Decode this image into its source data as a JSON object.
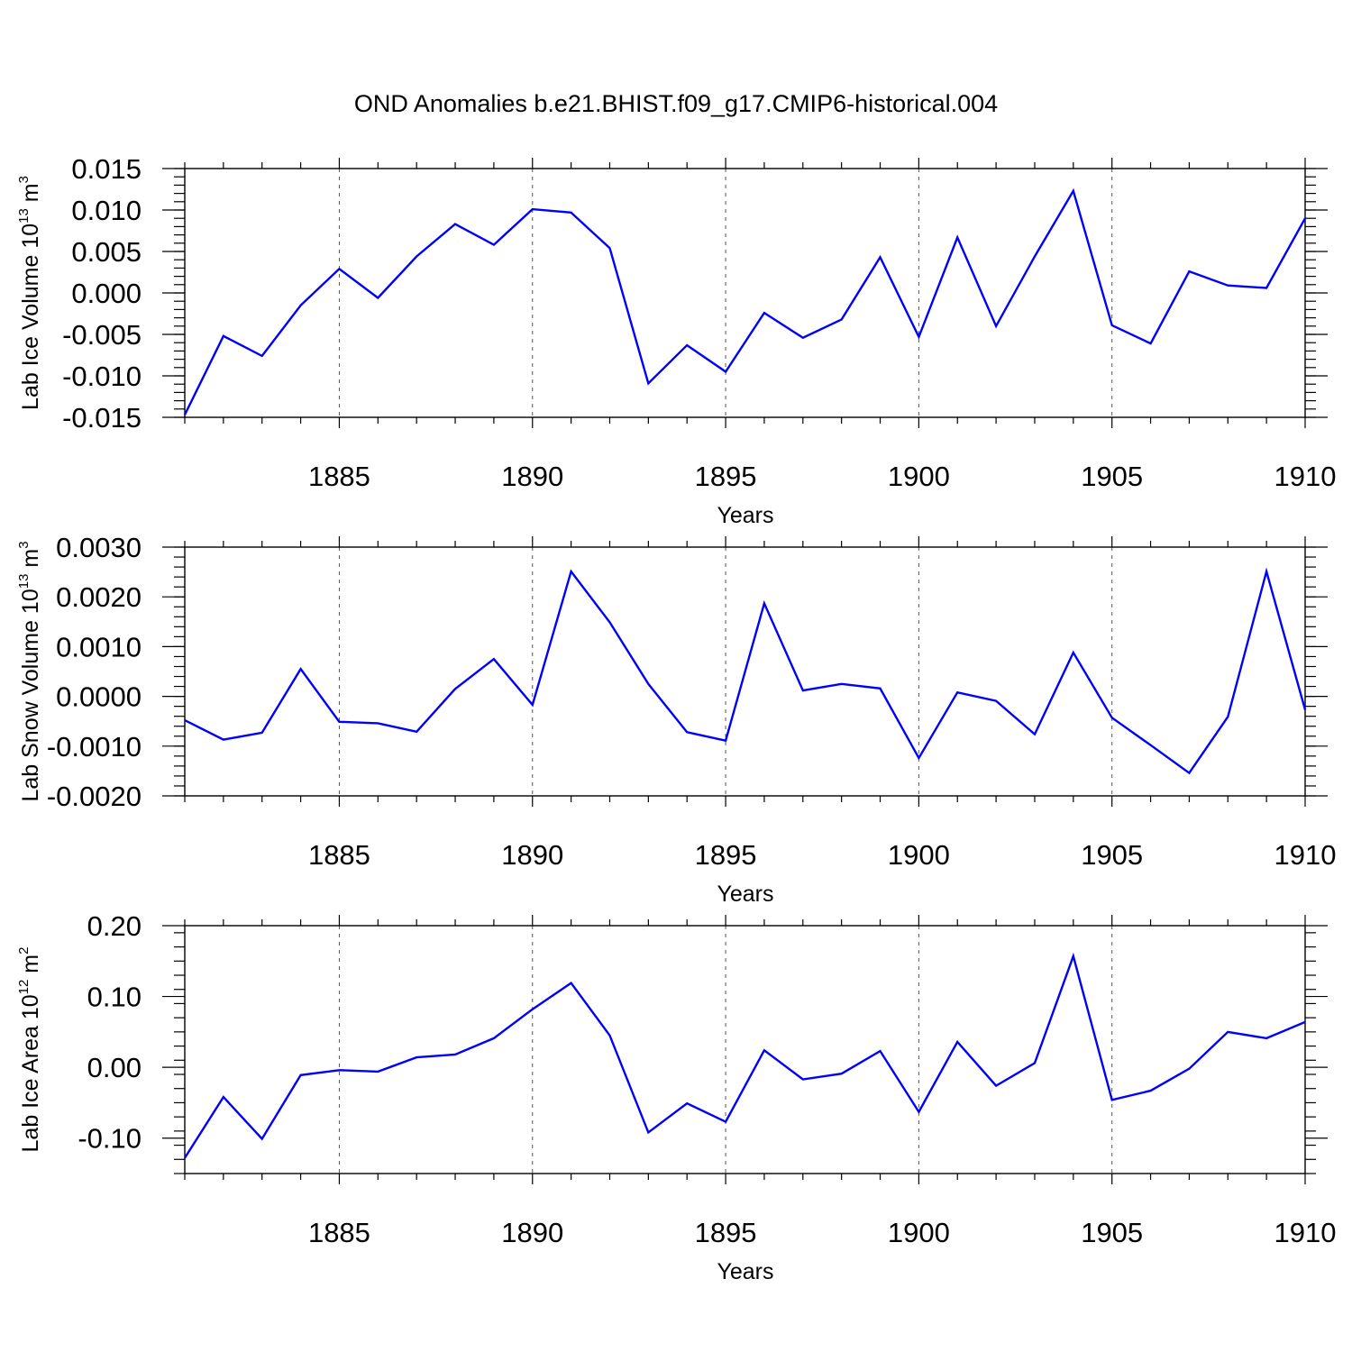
{
  "figure": {
    "title": "OND Anomalies b.e21.BHIST.f09_g17.CMIP6-historical.004"
  },
  "colors": {
    "series": "#0000ff",
    "axis": "#000000",
    "grid": "#555555"
  },
  "chart_data": [
    {
      "type": "line",
      "xlabel": "Years",
      "ylabel_text": "Lab Ice Volume 10",
      "ylabel_exponent": "13",
      "ylabel_unit": "m",
      "ylabel_unit_exponent": "3",
      "xlim": [
        1881,
        1910
      ],
      "ylim": [
        -0.015,
        0.015
      ],
      "xticks": [
        1885,
        1890,
        1895,
        1900,
        1905,
        1910
      ],
      "xtick_labels": [
        "1885",
        "1890",
        "1895",
        "1900",
        "1905",
        "1910"
      ],
      "yticks": [
        -0.015,
        -0.01,
        -0.005,
        0.0,
        0.005,
        0.01,
        0.015
      ],
      "ytick_labels": [
        "-0.015",
        "-0.010",
        "-0.005",
        "0.000",
        "0.005",
        "0.010",
        "0.015"
      ],
      "grid": "vertical dashed at major x ticks",
      "series": [
        {
          "name": "Lab Ice Volume",
          "x": [
            1881,
            1882,
            1883,
            1884,
            1885,
            1886,
            1887,
            1888,
            1889,
            1890,
            1891,
            1892,
            1893,
            1894,
            1895,
            1896,
            1897,
            1898,
            1899,
            1900,
            1901,
            1902,
            1903,
            1904,
            1905,
            1906,
            1907,
            1908,
            1909,
            1910
          ],
          "values": [
            -0.0147,
            -0.0052,
            -0.0076,
            -0.0015,
            0.0029,
            -0.0006,
            0.0044,
            0.0083,
            0.0058,
            0.0101,
            0.0097,
            0.0054,
            -0.0109,
            -0.0063,
            -0.0095,
            -0.0024,
            -0.0054,
            -0.0032,
            0.0043,
            -0.0053,
            0.0067,
            -0.004,
            0.0044,
            0.0123,
            -0.0039,
            -0.0061,
            0.0026,
            0.0009,
            0.0006,
            0.009
          ]
        }
      ]
    },
    {
      "type": "line",
      "xlabel": "Years",
      "ylabel_text": "Lab Snow Volume 10",
      "ylabel_exponent": "13",
      "ylabel_unit": "m",
      "ylabel_unit_exponent": "3",
      "xlim": [
        1881,
        1910
      ],
      "ylim": [
        -0.002,
        0.003
      ],
      "xticks": [
        1885,
        1890,
        1895,
        1900,
        1905,
        1910
      ],
      "xtick_labels": [
        "1885",
        "1890",
        "1895",
        "1900",
        "1905",
        "1910"
      ],
      "yticks": [
        -0.002,
        -0.001,
        0.0,
        0.001,
        0.002,
        0.003
      ],
      "ytick_labels": [
        "-0.0020",
        "-0.0010",
        "0.0000",
        "0.0010",
        "0.0020",
        "0.0030"
      ],
      "grid": "vertical dashed at major x ticks",
      "series": [
        {
          "name": "Lab Snow Volume",
          "x": [
            1881,
            1882,
            1883,
            1884,
            1885,
            1886,
            1887,
            1888,
            1889,
            1890,
            1891,
            1892,
            1893,
            1894,
            1895,
            1896,
            1897,
            1898,
            1899,
            1900,
            1901,
            1902,
            1903,
            1904,
            1905,
            1906,
            1907,
            1908,
            1909,
            1910
          ],
          "values": [
            -0.00048,
            -0.00087,
            -0.00073,
            0.00055,
            -0.00051,
            -0.00054,
            -0.00071,
            0.00015,
            0.00075,
            -0.00017,
            0.00251,
            0.00149,
            0.00025,
            -0.00072,
            -0.00089,
            0.00187,
            0.00012,
            0.00025,
            0.00016,
            -0.00124,
            8e-05,
            -9e-05,
            -0.00076,
            0.00088,
            -0.00043,
            -0.00098,
            -0.00154,
            -0.00041,
            0.00251,
            -0.00027
          ]
        }
      ]
    },
    {
      "type": "line",
      "xlabel": "Years",
      "ylabel_text": "Lab Ice Area 10",
      "ylabel_exponent": "12",
      "ylabel_unit": "m",
      "ylabel_unit_exponent": "2",
      "xlim": [
        1881,
        1910
      ],
      "ylim": [
        -0.15,
        0.2
      ],
      "xticks": [
        1885,
        1890,
        1895,
        1900,
        1905,
        1910
      ],
      "xtick_labels": [
        "1885",
        "1890",
        "1895",
        "1900",
        "1905",
        "1910"
      ],
      "yticks": [
        -0.1,
        0.0,
        0.1,
        0.2
      ],
      "ytick_labels": [
        "-0.10",
        "0.00",
        "0.10",
        "0.20"
      ],
      "grid": "vertical dashed at major x ticks",
      "series": [
        {
          "name": "Lab Ice Area",
          "x": [
            1881,
            1882,
            1883,
            1884,
            1885,
            1886,
            1887,
            1888,
            1889,
            1890,
            1891,
            1892,
            1893,
            1894,
            1895,
            1896,
            1897,
            1898,
            1899,
            1900,
            1901,
            1902,
            1903,
            1904,
            1905,
            1906,
            1907,
            1908,
            1909,
            1910
          ],
          "values": [
            -0.128,
            -0.042,
            -0.101,
            -0.011,
            -0.004,
            -0.006,
            0.014,
            0.018,
            0.041,
            0.082,
            0.119,
            0.045,
            -0.092,
            -0.051,
            -0.077,
            0.024,
            -0.017,
            -0.009,
            0.023,
            -0.063,
            0.036,
            -0.026,
            0.006,
            0.157,
            -0.046,
            -0.033,
            -0.002,
            0.05,
            0.041,
            0.064
          ]
        }
      ]
    }
  ]
}
